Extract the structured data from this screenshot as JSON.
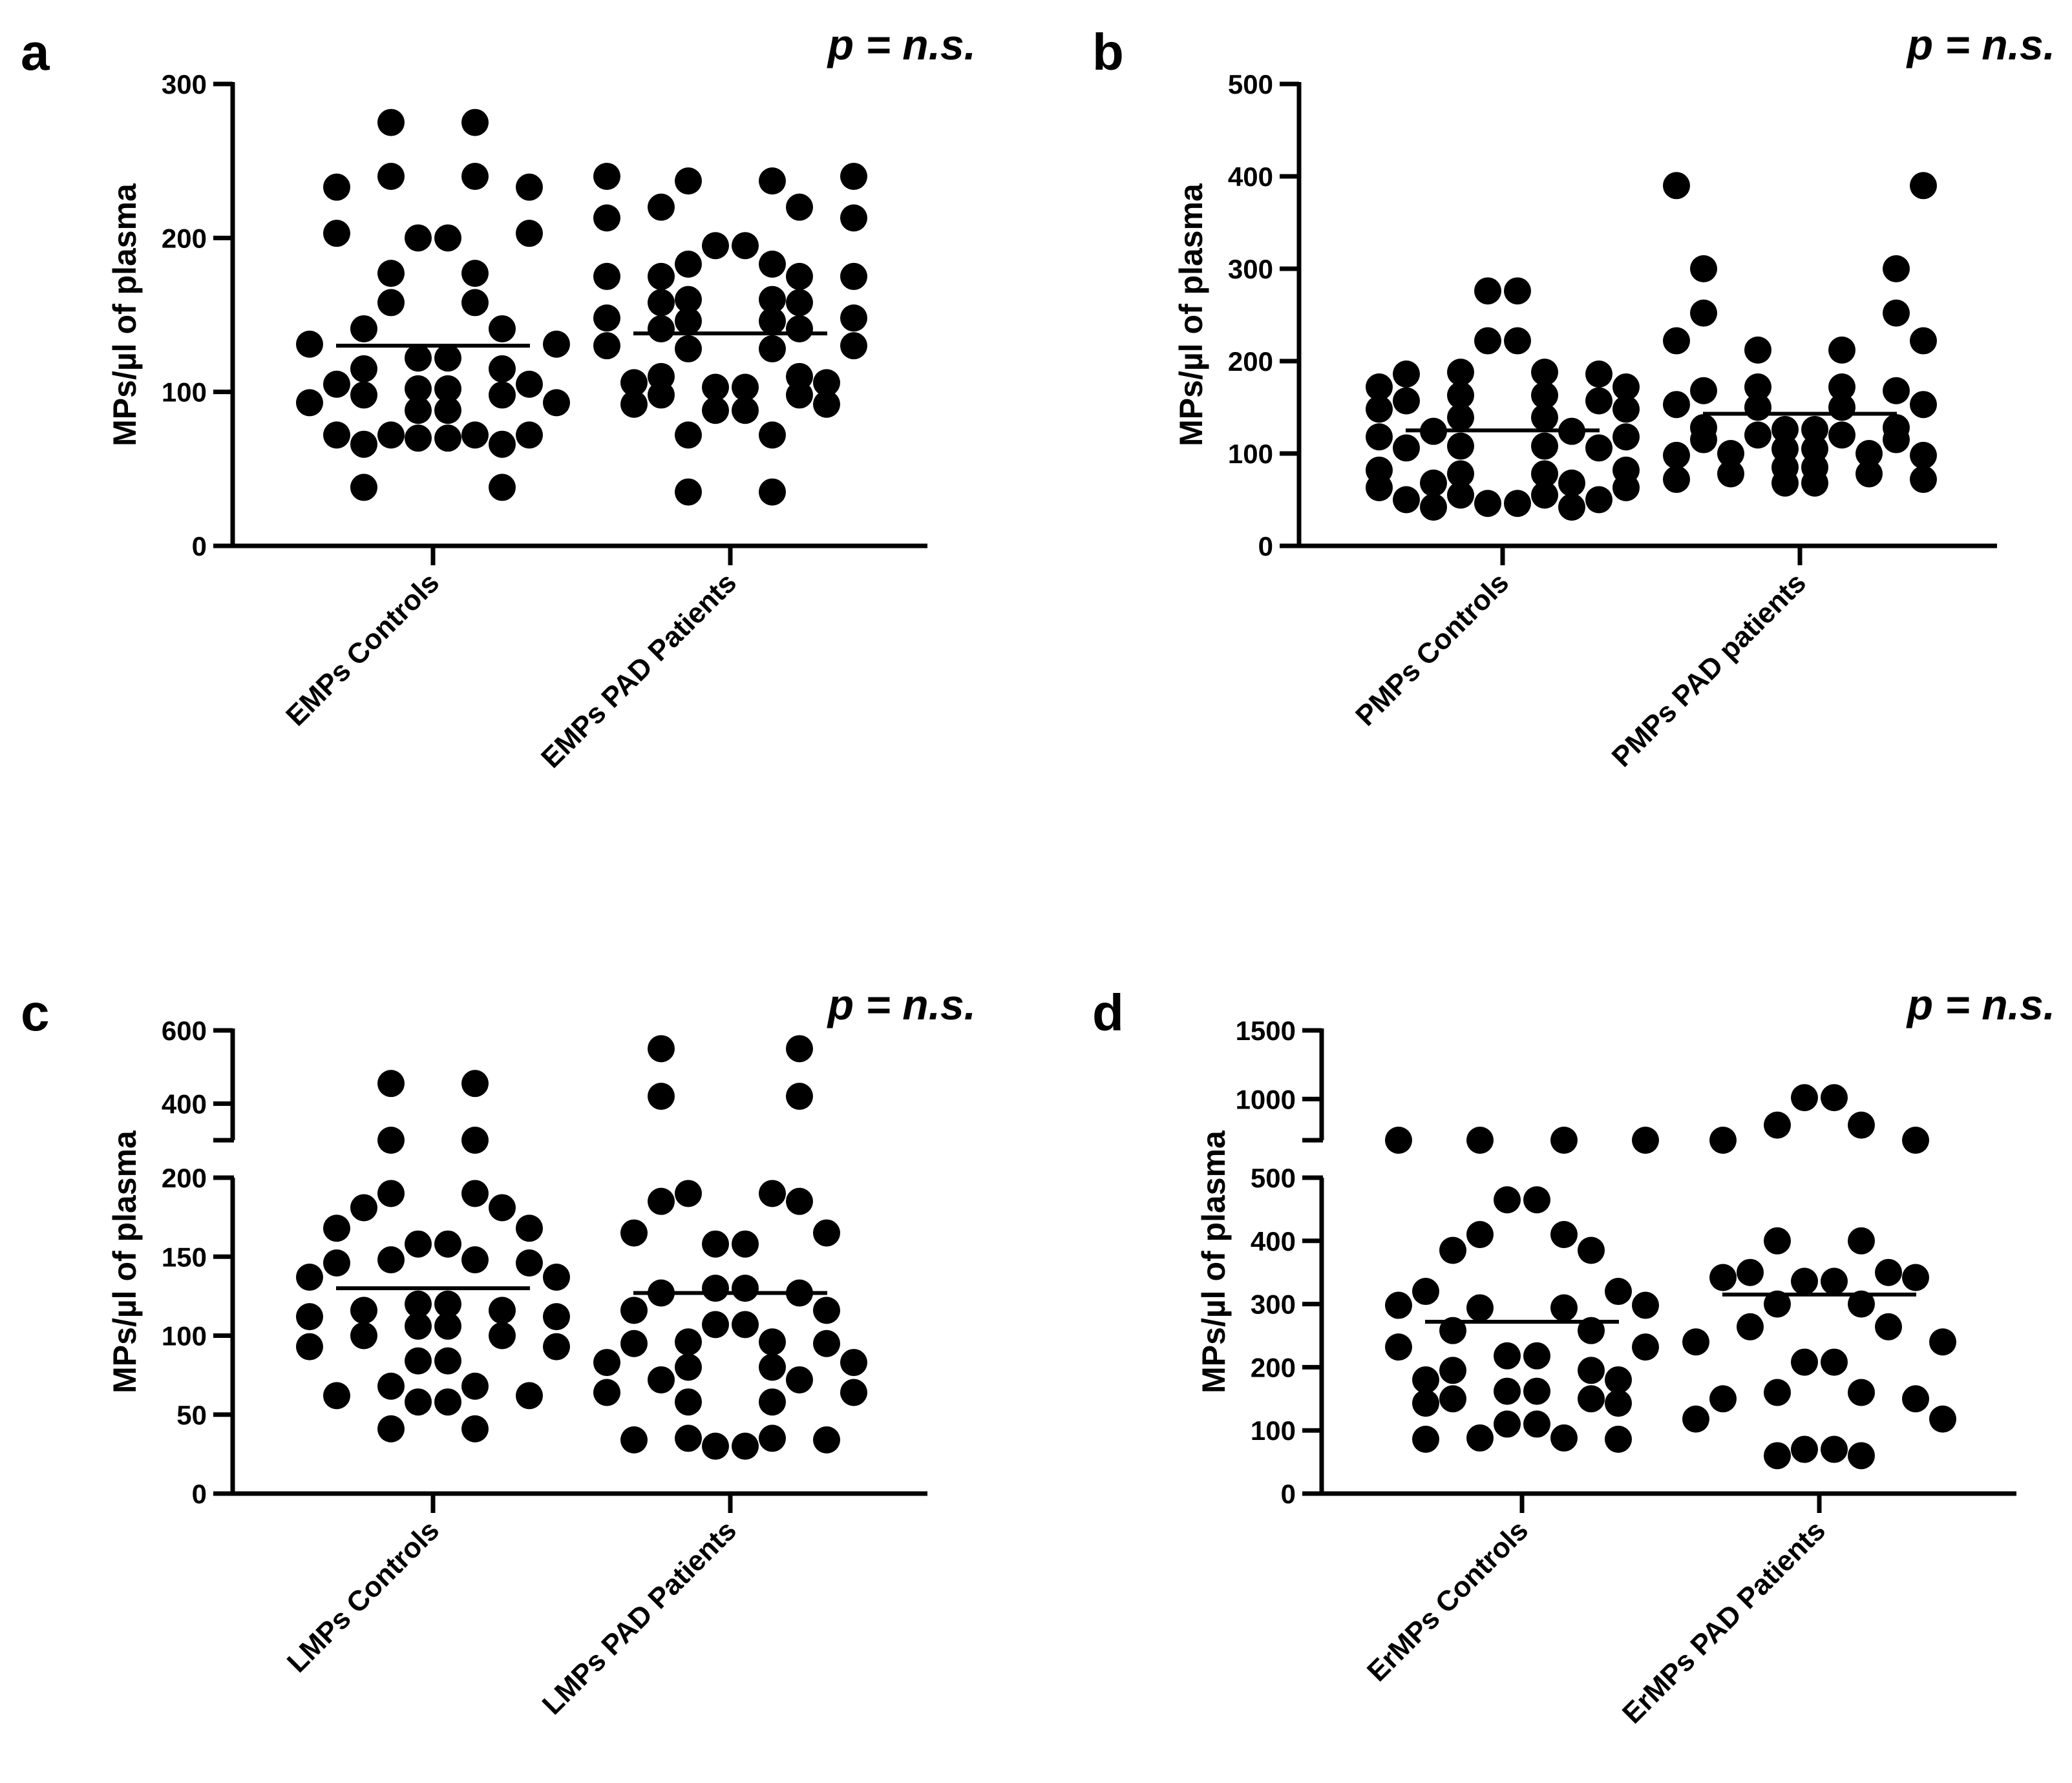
{
  "figure": {
    "background": "#ffffff",
    "ink": "#000000"
  },
  "chart_data": [
    {
      "type": "scatter",
      "panel": "a",
      "p_text": "p = n.s.",
      "ylabel": "MPs/µl of plasma",
      "ylim": [
        0,
        300
      ],
      "yticks": [
        0,
        100,
        200,
        300
      ],
      "series": [
        {
          "name": "EMPs Controls",
          "mean": 130,
          "values": [
            275,
            275,
            240,
            240,
            233,
            233,
            203,
            203,
            200,
            200,
            177,
            177,
            158,
            158,
            141,
            141,
            131,
            131,
            122,
            122,
            115,
            115,
            105,
            105,
            102,
            102,
            98,
            98,
            93,
            93,
            88,
            88,
            72,
            72,
            72,
            72,
            70,
            70,
            66,
            66,
            38,
            38
          ]
        },
        {
          "name": "EMPs PAD Patients",
          "mean": 138,
          "values": [
            240,
            240,
            237,
            237,
            220,
            220,
            213,
            213,
            195,
            195,
            183,
            183,
            175,
            175,
            175,
            175,
            160,
            160,
            158,
            158,
            148,
            148,
            146,
            146,
            141,
            141,
            130,
            130,
            128,
            128,
            110,
            110,
            106,
            106,
            103,
            103,
            98,
            98,
            92,
            92,
            88,
            88,
            72,
            72,
            35,
            35
          ]
        }
      ]
    },
    {
      "type": "scatter",
      "panel": "b",
      "p_text": "p = n.s.",
      "ylabel": "MPs/µl of plasma",
      "ylim": [
        0,
        500
      ],
      "yticks": [
        0,
        100,
        200,
        300,
        400,
        500
      ],
      "series": [
        {
          "name": "PMPs Controls",
          "mean": 125,
          "values": [
            276,
            276,
            222,
            222,
            188,
            188,
            186,
            186,
            172,
            172,
            163,
            163,
            157,
            157,
            148,
            148,
            139,
            139,
            124,
            124,
            118,
            118,
            108,
            108,
            106,
            106,
            82,
            82,
            78,
            78,
            68,
            68,
            63,
            63,
            55,
            55,
            50,
            50,
            46,
            46,
            42,
            42
          ]
        },
        {
          "name": "PMPs PAD patients",
          "mean": 143,
          "values": [
            390,
            390,
            300,
            300,
            252,
            252,
            222,
            222,
            212,
            212,
            172,
            172,
            168,
            168,
            153,
            153,
            150,
            150,
            128,
            128,
            126,
            126,
            120,
            120,
            115,
            115,
            105,
            105,
            100,
            100,
            98,
            98,
            85,
            85,
            78,
            78,
            72,
            72,
            68,
            68
          ]
        }
      ]
    },
    {
      "type": "scatter",
      "panel": "c",
      "p_text": "p = n.s.",
      "ylabel": "MPs/µl of plasma",
      "axis_break": [
        200,
        300
      ],
      "ylim": [
        0,
        600
      ],
      "yticks": [
        0,
        50,
        100,
        150,
        200,
        400,
        600
      ],
      "series": [
        {
          "name": "LMPs Controls",
          "mean": 130,
          "values": [
            455,
            455,
            283,
            283,
            190,
            190,
            181,
            181,
            168,
            168,
            158,
            158,
            148,
            148,
            146,
            146,
            137,
            137,
            120,
            120,
            116,
            116,
            112,
            112,
            106,
            106,
            100,
            100,
            93,
            93,
            84,
            84,
            68,
            68,
            62,
            62,
            58,
            58,
            41,
            41
          ]
        },
        {
          "name": "LMPs PAD Patients",
          "mean": 127,
          "values": [
            550,
            550,
            420,
            420,
            190,
            190,
            185,
            185,
            165,
            165,
            158,
            158,
            130,
            130,
            127,
            127,
            116,
            116,
            107,
            107,
            96,
            96,
            95,
            95,
            83,
            83,
            80,
            80,
            72,
            72,
            64,
            64,
            58,
            58,
            35,
            35,
            34,
            34,
            30,
            30
          ]
        }
      ]
    },
    {
      "type": "scatter",
      "panel": "d",
      "p_text": "p = n.s.",
      "ylabel": "MPs/µl of plasma",
      "axis_break": [
        500,
        700
      ],
      "ylim": [
        0,
        1500
      ],
      "yticks": [
        0,
        100,
        200,
        300,
        400,
        500,
        1000,
        1500
      ],
      "series": [
        {
          "name": "ErMPs Controls",
          "mean": 272,
          "values": [
            650,
            650,
            640,
            640,
            465,
            465,
            410,
            410,
            385,
            385,
            320,
            320,
            298,
            298,
            294,
            294,
            258,
            258,
            232,
            232,
            218,
            218,
            195,
            195,
            180,
            180,
            162,
            162,
            150,
            150,
            143,
            143,
            110,
            110,
            88,
            88,
            86,
            86
          ]
        },
        {
          "name": "ErMPs PAD Patients",
          "mean": 315,
          "values": [
            1010,
            1010,
            810,
            810,
            650,
            650,
            400,
            400,
            350,
            350,
            342,
            342,
            336,
            336,
            300,
            300,
            264,
            264,
            240,
            240,
            208,
            208,
            160,
            160,
            150,
            150,
            118,
            118,
            70,
            70,
            60,
            60
          ]
        }
      ]
    }
  ]
}
